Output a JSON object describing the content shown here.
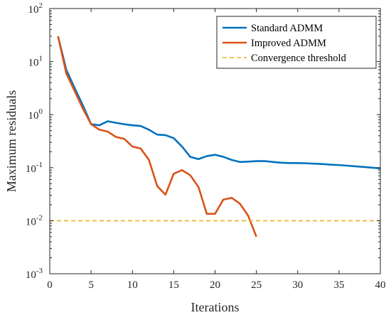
{
  "chart_data": {
    "type": "line",
    "xlabel": "Iterations",
    "ylabel": "Maximum residuals",
    "xlim": [
      0,
      40
    ],
    "ylim": [
      0.001,
      100
    ],
    "yscale": "log",
    "x_ticks": [
      "0",
      "5",
      "10",
      "15",
      "20",
      "25",
      "30",
      "35",
      "40"
    ],
    "y_ticks": [
      {
        "base": "10",
        "exp": "-3"
      },
      {
        "base": "10",
        "exp": "-2"
      },
      {
        "base": "10",
        "exp": "-1"
      },
      {
        "base": "10",
        "exp": "0"
      },
      {
        "base": "10",
        "exp": "1"
      },
      {
        "base": "10",
        "exp": "2"
      }
    ],
    "grid": false,
    "legend_position": "top-right",
    "series": [
      {
        "name": "Standard ADMM",
        "color": "#0072bd",
        "style": "solid",
        "x": [
          1,
          2,
          3,
          4,
          5,
          6,
          7,
          8,
          9,
          10,
          11,
          12,
          13,
          14,
          15,
          16,
          17,
          18,
          19,
          20,
          21,
          22,
          23,
          24,
          25,
          26,
          27,
          28,
          29,
          30,
          31,
          32,
          33,
          34,
          35,
          36,
          37,
          38,
          39,
          40
        ],
        "y": [
          30,
          7,
          3.2,
          1.5,
          0.66,
          0.63,
          0.75,
          0.7,
          0.66,
          0.63,
          0.61,
          0.52,
          0.42,
          0.41,
          0.36,
          0.25,
          0.16,
          0.145,
          0.165,
          0.175,
          0.16,
          0.14,
          0.128,
          0.13,
          0.133,
          0.133,
          0.128,
          0.124,
          0.122,
          0.122,
          0.121,
          0.119,
          0.117,
          0.114,
          0.112,
          0.109,
          0.106,
          0.103,
          0.1,
          0.097
        ]
      },
      {
        "name": "Improved ADMM",
        "color": "#d95319",
        "style": "solid",
        "x": [
          1,
          2,
          3,
          4,
          5,
          6,
          7,
          8,
          9,
          10,
          11,
          12,
          13,
          14,
          15,
          16,
          17,
          18,
          19,
          20,
          21,
          22,
          23,
          24,
          25
        ],
        "y": [
          30,
          6,
          2.8,
          1.3,
          0.66,
          0.52,
          0.48,
          0.38,
          0.35,
          0.25,
          0.23,
          0.14,
          0.045,
          0.031,
          0.077,
          0.09,
          0.072,
          0.043,
          0.0135,
          0.0135,
          0.025,
          0.027,
          0.021,
          0.0125,
          0.005
        ]
      },
      {
        "name": "Convergence threshold",
        "color": "#edb120",
        "style": "dashed",
        "x": [
          0,
          40
        ],
        "y": [
          0.01,
          0.01
        ]
      }
    ]
  }
}
